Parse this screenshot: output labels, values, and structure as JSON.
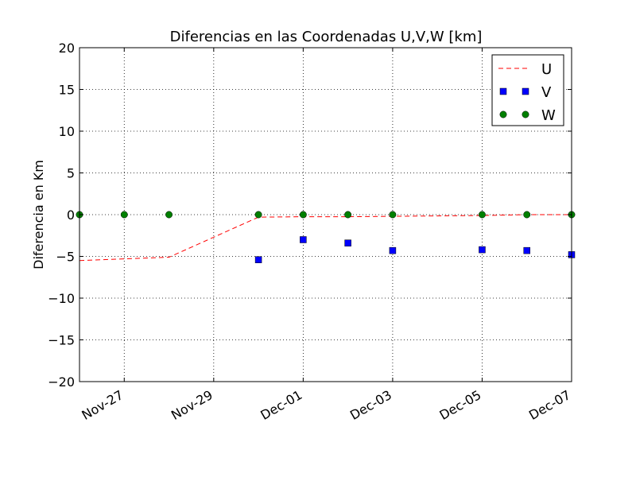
{
  "chart_data": {
    "type": "line",
    "title": "Diferencias en las Coordenadas U,V,W [km]",
    "xlabel": "",
    "ylabel": "Diferencia en Km",
    "ylim": [
      -20,
      20
    ],
    "xlim": [
      "2014-11-26",
      "2014-12-07"
    ],
    "yticks": [
      20,
      15,
      10,
      5,
      0,
      -5,
      -10,
      -15,
      -20
    ],
    "ytick_labels": [
      "20",
      "15",
      "10",
      "5",
      "0",
      "−5",
      "−10",
      "−15",
      "−20"
    ],
    "xticks": [
      "2014-11-27",
      "2014-11-29",
      "2014-12-01",
      "2014-12-03",
      "2014-12-05",
      "2014-12-07"
    ],
    "xtick_labels": [
      "Nov-27",
      "Nov-29",
      "Dec-01",
      "Dec-03",
      "Dec-05",
      "Dec-07"
    ],
    "grid": true,
    "legend_position": "top-right",
    "series": [
      {
        "name": "U",
        "style": "dashed-line",
        "color": "#ff0000",
        "x": [
          "2014-11-26",
          "2014-11-27",
          "2014-11-28",
          "2014-11-30",
          "2014-12-01",
          "2014-12-02",
          "2014-12-03",
          "2014-12-05",
          "2014-12-06",
          "2014-12-07"
        ],
        "values": [
          -5.5,
          -5.3,
          -5.1,
          -0.3,
          -0.25,
          -0.25,
          -0.2,
          -0.1,
          0.0,
          0.0
        ]
      },
      {
        "name": "V",
        "style": "square-markers",
        "color": "#0000ff",
        "x": [
          "2014-11-30",
          "2014-12-01",
          "2014-12-02",
          "2014-12-03",
          "2014-12-05",
          "2014-12-06",
          "2014-12-07"
        ],
        "values": [
          -5.4,
          -3.0,
          -3.4,
          -4.3,
          -4.2,
          -4.3,
          -4.8
        ]
      },
      {
        "name": "W",
        "style": "circle-markers",
        "color": "#008000",
        "x": [
          "2014-11-26",
          "2014-11-27",
          "2014-11-28",
          "2014-11-30",
          "2014-12-01",
          "2014-12-02",
          "2014-12-03",
          "2014-12-05",
          "2014-12-06",
          "2014-12-07"
        ],
        "values": [
          0,
          0,
          0,
          0,
          0,
          0,
          0,
          0,
          0,
          0
        ]
      }
    ]
  }
}
